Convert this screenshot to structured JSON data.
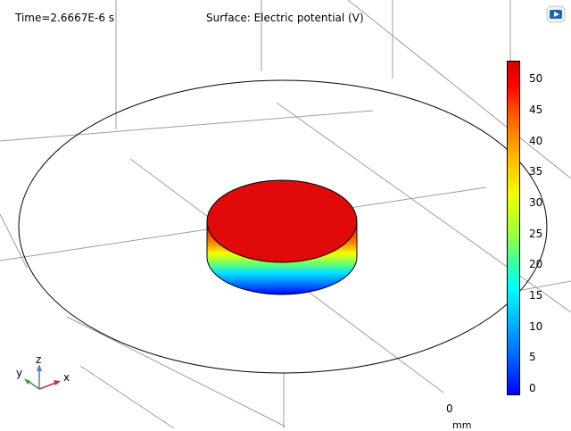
{
  "header": {
    "time_label": "Time=2.6667E-6 s",
    "plot_title": "Surface: Electric potential (V)"
  },
  "colorbar": {
    "colormap": "Rainbow",
    "min_color": "#0000ff",
    "max_color": "#d40000",
    "ticks": [
      "50",
      "45",
      "40",
      "35",
      "30",
      "25",
      "20",
      "15",
      "10",
      "5",
      "0"
    ]
  },
  "axes": {
    "x_label": "x",
    "y_label": "y",
    "z_label": "z"
  },
  "scale": {
    "zero_label": "0",
    "unit_label": "mm"
  },
  "icons": [
    "brand-logo-icon",
    "axis-triad-icon"
  ],
  "colors": {
    "top_surface": "#e10a0a",
    "outline": "#000000",
    "grid": "#9e9e9e"
  }
}
